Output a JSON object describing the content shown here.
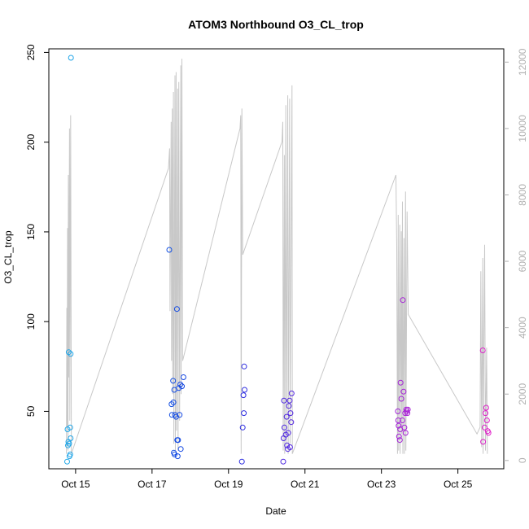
{
  "chart_data": {
    "type": "scatter",
    "title": "ATOM3 Northbound O3_CL_trop",
    "xlabel": "Date",
    "ylabel": "O3_CL_trop",
    "x_unit": "day of October (local midnight = integer)",
    "xlim": [
      14.3,
      26.2
    ],
    "ylim": [
      18,
      252
    ],
    "y2lim": [
      -250,
      12400
    ],
    "x_ticks": [
      {
        "value": 15,
        "label": "Oct 15"
      },
      {
        "value": 17,
        "label": "Oct 17"
      },
      {
        "value": 19,
        "label": "Oct 19"
      },
      {
        "value": 21,
        "label": "Oct 21"
      },
      {
        "value": 23,
        "label": "Oct 23"
      },
      {
        "value": 25,
        "label": "Oct 25"
      }
    ],
    "y_ticks": [
      {
        "value": 50,
        "label": "50"
      },
      {
        "value": 100,
        "label": "100"
      },
      {
        "value": 150,
        "label": "150"
      },
      {
        "value": 200,
        "label": "200"
      },
      {
        "value": 250,
        "label": "250"
      }
    ],
    "y2_ticks": [
      {
        "value": 0,
        "label": "0"
      },
      {
        "value": 2000,
        "label": "2000"
      },
      {
        "value": 4000,
        "label": "4000"
      },
      {
        "value": 6000,
        "label": "6000"
      },
      {
        "value": 8000,
        "label": "8000"
      },
      {
        "value": 10000,
        "label": "10000"
      },
      {
        "value": 12000,
        "label": "12000"
      }
    ],
    "colors": {
      "right_axis": "#b0b0b0",
      "altitude_line": "#c8c8c8",
      "point_gradient": [
        "#20a8e8",
        "#1030e0",
        "#8020e0",
        "#e020c8"
      ]
    },
    "series": [
      {
        "marker": "open-circle",
        "points": [
          [
            14.78,
            22
          ],
          [
            14.8,
            31
          ],
          [
            14.81,
            33
          ],
          [
            14.79,
            40
          ],
          [
            14.82,
            83
          ],
          [
            14.84,
            25
          ],
          [
            14.86,
            26
          ],
          [
            14.87,
            82
          ],
          [
            14.86,
            41
          ],
          [
            14.87,
            35
          ],
          [
            14.88,
            247
          ],
          [
            14.83,
            32
          ],
          [
            17.45,
            140
          ],
          [
            17.52,
            48
          ],
          [
            17.51,
            54
          ],
          [
            17.55,
            67
          ],
          [
            17.56,
            55
          ],
          [
            17.58,
            62
          ],
          [
            17.57,
            27
          ],
          [
            17.59,
            26
          ],
          [
            17.6,
            48
          ],
          [
            17.63,
            47
          ],
          [
            17.65,
            107
          ],
          [
            17.66,
            34
          ],
          [
            17.67,
            25
          ],
          [
            17.68,
            34
          ],
          [
            17.7,
            63
          ],
          [
            17.72,
            48
          ],
          [
            17.74,
            65
          ],
          [
            17.75,
            29
          ],
          [
            17.78,
            64
          ],
          [
            17.82,
            69
          ],
          [
            19.35,
            22
          ],
          [
            19.37,
            41
          ],
          [
            19.39,
            59
          ],
          [
            19.41,
            75
          ],
          [
            19.42,
            62
          ],
          [
            19.4,
            49
          ],
          [
            20.43,
            22
          ],
          [
            20.44,
            35
          ],
          [
            20.45,
            56
          ],
          [
            20.46,
            41
          ],
          [
            20.5,
            37
          ],
          [
            20.52,
            47
          ],
          [
            20.53,
            31
          ],
          [
            20.55,
            29
          ],
          [
            20.56,
            38
          ],
          [
            20.58,
            53
          ],
          [
            20.6,
            56
          ],
          [
            20.61,
            30
          ],
          [
            20.62,
            49
          ],
          [
            20.64,
            44
          ],
          [
            20.65,
            60
          ],
          [
            23.43,
            50
          ],
          [
            23.44,
            45
          ],
          [
            23.45,
            42
          ],
          [
            23.46,
            36
          ],
          [
            23.48,
            34
          ],
          [
            23.49,
            40
          ],
          [
            23.5,
            66
          ],
          [
            23.52,
            57
          ],
          [
            23.55,
            45
          ],
          [
            23.56,
            112
          ],
          [
            23.58,
            61
          ],
          [
            23.6,
            41
          ],
          [
            23.62,
            49
          ],
          [
            23.63,
            38
          ],
          [
            23.65,
            51
          ],
          [
            23.66,
            50
          ],
          [
            23.68,
            49
          ],
          [
            23.69,
            51
          ],
          [
            25.65,
            84
          ],
          [
            25.66,
            33
          ],
          [
            25.7,
            41
          ],
          [
            25.72,
            49
          ],
          [
            25.74,
            52
          ],
          [
            25.76,
            45
          ],
          [
            25.78,
            39
          ],
          [
            25.8,
            38
          ]
        ]
      },
      {
        "axis": "right",
        "style": "line",
        "points": [
          [
            14.76,
            200
          ],
          [
            14.77,
            4600
          ],
          [
            14.78,
            1000
          ],
          [
            14.79,
            7000
          ],
          [
            14.8,
            300
          ],
          [
            14.81,
            8600
          ],
          [
            14.82,
            2500
          ],
          [
            14.84,
            10000
          ],
          [
            14.85,
            1200
          ],
          [
            14.87,
            10400
          ],
          [
            14.89,
            200
          ],
          [
            17.43,
            8800
          ],
          [
            17.46,
            9400
          ],
          [
            17.47,
            4500
          ],
          [
            17.5,
            10200
          ],
          [
            17.51,
            3000
          ],
          [
            17.53,
            10600
          ],
          [
            17.54,
            2000
          ],
          [
            17.56,
            11100
          ],
          [
            17.57,
            500
          ],
          [
            17.6,
            11600
          ],
          [
            17.61,
            300
          ],
          [
            17.63,
            11700
          ],
          [
            17.64,
            900
          ],
          [
            17.67,
            11200
          ],
          [
            17.68,
            300
          ],
          [
            17.7,
            11400
          ],
          [
            17.72,
            1200
          ],
          [
            17.75,
            11900
          ],
          [
            17.76,
            2000
          ],
          [
            17.78,
            12100
          ],
          [
            17.8,
            3000
          ],
          [
            19.3,
            10000
          ],
          [
            19.32,
            10400
          ],
          [
            19.33,
            200
          ],
          [
            19.35,
            10600
          ],
          [
            19.37,
            6200
          ],
          [
            20.4,
            9600
          ],
          [
            20.42,
            10200
          ],
          [
            20.43,
            300
          ],
          [
            20.46,
            9200
          ],
          [
            20.47,
            200
          ],
          [
            20.5,
            10700
          ],
          [
            20.51,
            400
          ],
          [
            20.55,
            11000
          ],
          [
            20.56,
            200
          ],
          [
            20.6,
            10900
          ],
          [
            20.61,
            500
          ],
          [
            20.66,
            11300
          ],
          [
            20.67,
            200
          ],
          [
            23.38,
            8600
          ],
          [
            23.4,
            6400
          ],
          [
            23.42,
            200
          ],
          [
            23.44,
            7400
          ],
          [
            23.45,
            300
          ],
          [
            23.48,
            7100
          ],
          [
            23.49,
            200
          ],
          [
            23.52,
            6900
          ],
          [
            23.53,
            800
          ],
          [
            23.55,
            7800
          ],
          [
            23.56,
            200
          ],
          [
            23.59,
            6700
          ],
          [
            23.6,
            200
          ],
          [
            23.63,
            8100
          ],
          [
            23.64,
            300
          ],
          [
            23.67,
            7500
          ],
          [
            23.7,
            4400
          ],
          [
            25.5,
            800
          ],
          [
            25.58,
            1000
          ],
          [
            25.6,
            5700
          ],
          [
            25.62,
            400
          ],
          [
            25.65,
            6100
          ],
          [
            25.66,
            200
          ],
          [
            25.7,
            6500
          ],
          [
            25.72,
            300
          ],
          [
            25.75,
            3400
          ],
          [
            25.77,
            200
          ]
        ]
      }
    ]
  }
}
